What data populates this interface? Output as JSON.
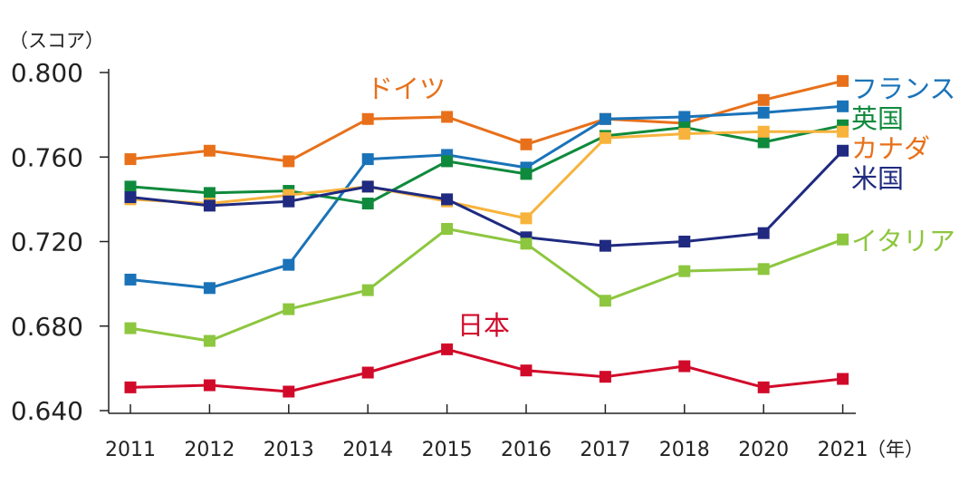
{
  "chart_data": {
    "type": "line",
    "y_unit_label": "（スコア）",
    "x_unit_label": "（年）",
    "categories": [
      "2011",
      "2012",
      "2013",
      "2014",
      "2015",
      "2016",
      "2017",
      "2018",
      "2020",
      "2021"
    ],
    "ylim": [
      0.64,
      0.8
    ],
    "yticks": [
      "0.800",
      "0.760",
      "0.720",
      "0.680",
      "0.640"
    ],
    "ytick_values": [
      0.8,
      0.76,
      0.72,
      0.68,
      0.64
    ],
    "grid": false,
    "legend_placement": "right-end labels",
    "series": [
      {
        "name": "ドイツ",
        "color": "#e8701a",
        "label_position": "top-left",
        "values": [
          0.759,
          0.763,
          0.758,
          0.778,
          0.779,
          0.766,
          0.778,
          0.776,
          0.787,
          0.796
        ]
      },
      {
        "name": "フランス",
        "color": "#1a73b8",
        "label_position": "right",
        "values": [
          0.702,
          0.698,
          0.709,
          0.759,
          0.761,
          0.755,
          0.778,
          0.779,
          0.781,
          0.784
        ]
      },
      {
        "name": "英国",
        "color": "#0f8a3c",
        "label_position": "right",
        "values": [
          0.746,
          0.743,
          0.744,
          0.738,
          0.758,
          0.752,
          0.77,
          0.774,
          0.767,
          0.775
        ]
      },
      {
        "name": "カナダ",
        "color": "#f7b33c",
        "label_color": "#e8701a",
        "label_position": "right",
        "values": [
          0.74,
          0.738,
          0.742,
          0.746,
          0.739,
          0.731,
          0.769,
          0.771,
          0.772,
          0.772
        ]
      },
      {
        "name": "米国",
        "color": "#1f2a80",
        "label_position": "right",
        "values": [
          0.741,
          0.737,
          0.739,
          0.746,
          0.74,
          0.722,
          0.718,
          0.72,
          0.724,
          0.763
        ]
      },
      {
        "name": "イタリア",
        "color": "#8dc63f",
        "label_position": "right",
        "values": [
          0.679,
          0.673,
          0.688,
          0.697,
          0.726,
          0.719,
          0.692,
          0.706,
          0.707,
          0.721
        ]
      },
      {
        "name": "日本",
        "color": "#d10a2a",
        "label_position": "top-center",
        "values": [
          0.651,
          0.652,
          0.649,
          0.658,
          0.669,
          0.659,
          0.656,
          0.661,
          0.651,
          0.655
        ]
      }
    ]
  }
}
